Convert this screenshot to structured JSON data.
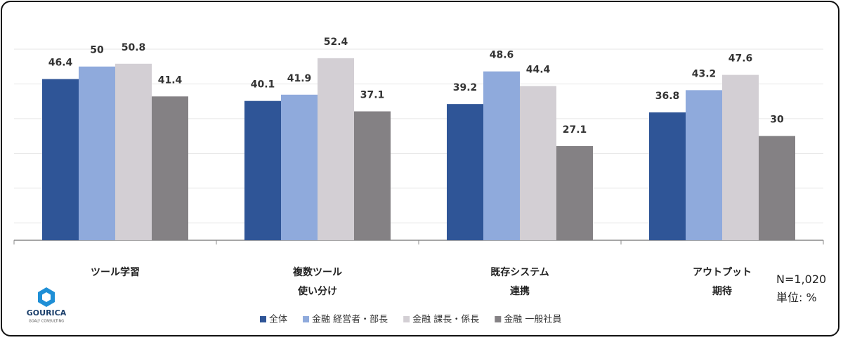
{
  "chart_data": {
    "type": "bar",
    "categories": [
      "ツール学習",
      "複数ツール\n使い分け",
      "既存システム\n連携",
      "アウトプット\n期待"
    ],
    "series": [
      {
        "name": "全体",
        "color": "#2f5597",
        "values": [
          46.4,
          40.1,
          39.2,
          36.8
        ]
      },
      {
        "name": "金融 経営者・部長",
        "color": "#8faadc",
        "values": [
          50,
          41.9,
          48.6,
          43.2
        ]
      },
      {
        "name": "金融 課長・係長",
        "color": "#d3cfd4",
        "values": [
          50.8,
          52.4,
          44.4,
          47.6
        ]
      },
      {
        "name": "金融 一般社員",
        "color": "#848184",
        "values": [
          41.4,
          37.1,
          27.1,
          30
        ]
      }
    ],
    "ylim": [
      0,
      55
    ],
    "yticks": [
      5,
      15,
      25,
      35,
      45,
      55
    ],
    "grid": true,
    "notes": [
      "N=1,020",
      "単位: %"
    ],
    "logo": {
      "name": "GOURICA",
      "tagline": "GOALY CONSULTING"
    }
  }
}
